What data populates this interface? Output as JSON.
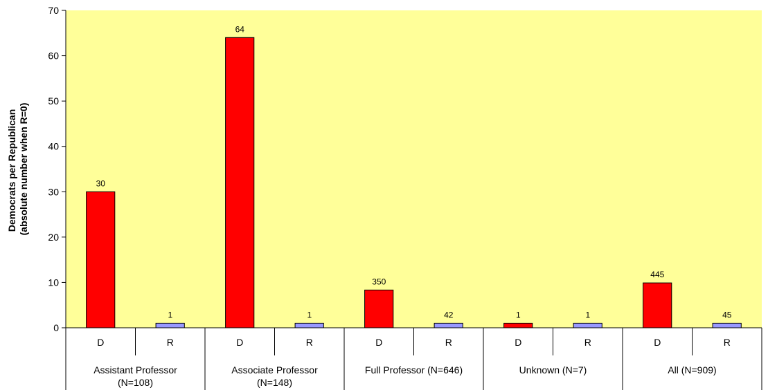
{
  "chart_data": {
    "type": "bar",
    "ylabel_lines": [
      "Democrats per Republican",
      "(absolute number when R=0)"
    ],
    "ylim": [
      0,
      70
    ],
    "yticks": [
      0,
      10,
      20,
      30,
      40,
      50,
      60,
      70
    ],
    "grid": false,
    "plot_background": "#ffff99",
    "colors": {
      "D": "#ff0000",
      "R": "#9999ff"
    },
    "groups": [
      {
        "label_lines": [
          "Assistant Professor",
          "(N=108)"
        ],
        "bars": [
          {
            "party": "D",
            "value": 30,
            "label": "30"
          },
          {
            "party": "R",
            "value": 1,
            "label": "1"
          }
        ]
      },
      {
        "label_lines": [
          "Associate Professor",
          "(N=148)"
        ],
        "bars": [
          {
            "party": "D",
            "value": 64,
            "label": "64"
          },
          {
            "party": "R",
            "value": 1,
            "label": "1"
          }
        ]
      },
      {
        "label_lines": [
          "Full Professor (N=646)"
        ],
        "bars": [
          {
            "party": "D",
            "value": 8.33,
            "label": "350"
          },
          {
            "party": "R",
            "value": 1,
            "label": "42"
          }
        ]
      },
      {
        "label_lines": [
          "Unknown (N=7)"
        ],
        "bars": [
          {
            "party": "D",
            "value": 1,
            "label": "1"
          },
          {
            "party": "R",
            "value": 1,
            "label": "1"
          }
        ]
      },
      {
        "label_lines": [
          "All (N=909)"
        ],
        "bars": [
          {
            "party": "D",
            "value": 9.89,
            "label": "445"
          },
          {
            "party": "R",
            "value": 1,
            "label": "45"
          }
        ]
      }
    ]
  }
}
